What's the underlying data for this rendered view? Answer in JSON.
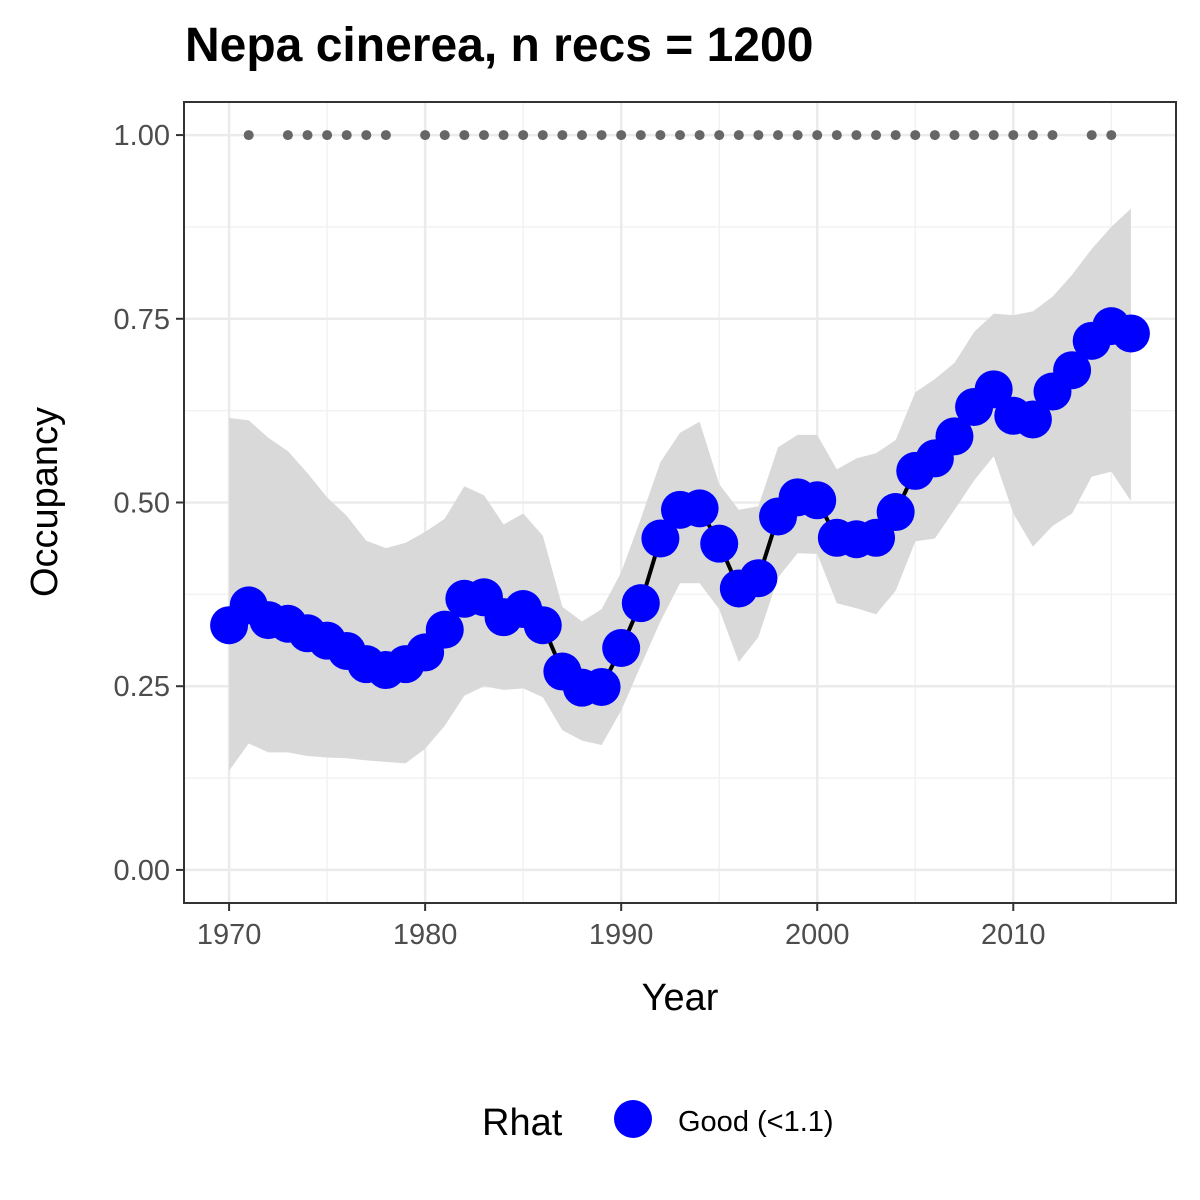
{
  "chart_data": {
    "type": "line",
    "title": "Nepa cinerea, n recs = 1200",
    "xlabel": "Year",
    "ylabel": "Occupancy",
    "xlim": [
      1968.2,
      1917.8
    ],
    "ylim": [
      -0.045,
      1.045
    ],
    "x_ticks": [
      1970,
      1980,
      1990,
      2000,
      2010
    ],
    "x_tick_labels": [
      "1970",
      "1980",
      "1990",
      "2000",
      "2010"
    ],
    "y_ticks": [
      0,
      0.25,
      0.5,
      0.75,
      1.0
    ],
    "y_tick_labels": [
      "0.00",
      "0.25",
      "0.50",
      "0.75",
      "1.00"
    ],
    "grid": true,
    "legend": {
      "title": "Rhat",
      "position": "bottom",
      "entries": [
        {
          "label": "Good (<1.1)",
          "color": "#0000ff"
        }
      ]
    },
    "colors": {
      "points": "#0000ff",
      "line": "#000000",
      "ribbon": "#d9d9d9",
      "record_dots": "#666666"
    },
    "series": [
      {
        "x": [
          1970,
          1971,
          1972,
          1973,
          1974,
          1975,
          1976,
          1977,
          1978,
          1979,
          1980,
          1981,
          1982,
          1983,
          1984,
          1985,
          1986,
          1987,
          1988,
          1989,
          1990,
          1991,
          1992,
          1993,
          1994,
          1995,
          1996,
          1997,
          1998,
          1999,
          2000,
          2001,
          2002,
          2003,
          2004,
          2005,
          2006,
          2007,
          2008,
          2009,
          2010,
          2011,
          2012,
          2013,
          2014,
          2015,
          2016
        ],
        "y": [
          0.333,
          0.36,
          0.34,
          0.335,
          0.322,
          0.312,
          0.298,
          0.28,
          0.272,
          0.28,
          0.296,
          0.327,
          0.369,
          0.371,
          0.344,
          0.355,
          0.333,
          0.27,
          0.248,
          0.249,
          0.302,
          0.363,
          0.451,
          0.49,
          0.492,
          0.444,
          0.383,
          0.397,
          0.481,
          0.507,
          0.503,
          0.452,
          0.45,
          0.452,
          0.487,
          0.543,
          0.56,
          0.59,
          0.63,
          0.654,
          0.618,
          0.613,
          0.651,
          0.68,
          0.72,
          0.74,
          0.73
        ],
        "lower": [
          0.135,
          0.172,
          0.16,
          0.16,
          0.155,
          0.153,
          0.152,
          0.149,
          0.147,
          0.145,
          0.165,
          0.196,
          0.237,
          0.25,
          0.245,
          0.247,
          0.235,
          0.19,
          0.176,
          0.17,
          0.217,
          0.278,
          0.338,
          0.39,
          0.39,
          0.355,
          0.283,
          0.317,
          0.398,
          0.431,
          0.43,
          0.363,
          0.356,
          0.348,
          0.38,
          0.447,
          0.451,
          0.49,
          0.53,
          0.563,
          0.485,
          0.44,
          0.468,
          0.485,
          0.535,
          0.542,
          0.502
        ],
        "upper": [
          0.615,
          0.612,
          0.588,
          0.57,
          0.54,
          0.507,
          0.482,
          0.448,
          0.438,
          0.445,
          0.46,
          0.478,
          0.522,
          0.51,
          0.47,
          0.485,
          0.455,
          0.358,
          0.338,
          0.355,
          0.405,
          0.478,
          0.555,
          0.595,
          0.61,
          0.525,
          0.49,
          0.495,
          0.575,
          0.592,
          0.592,
          0.545,
          0.56,
          0.567,
          0.585,
          0.65,
          0.668,
          0.69,
          0.732,
          0.757,
          0.755,
          0.76,
          0.78,
          0.81,
          0.845,
          0.875,
          0.9
        ]
      }
    ],
    "records": {
      "x": [
        1971,
        1973,
        1974,
        1975,
        1976,
        1977,
        1978,
        1980,
        1981,
        1982,
        1983,
        1984,
        1985,
        1986,
        1987,
        1988,
        1989,
        1990,
        1991,
        1992,
        1993,
        1994,
        1995,
        1996,
        1997,
        1998,
        1999,
        2000,
        2001,
        2002,
        2003,
        2004,
        2005,
        2006,
        2007,
        2008,
        2009,
        2010,
        2011,
        2012,
        2014,
        2015
      ],
      "y": 1.0
    }
  }
}
